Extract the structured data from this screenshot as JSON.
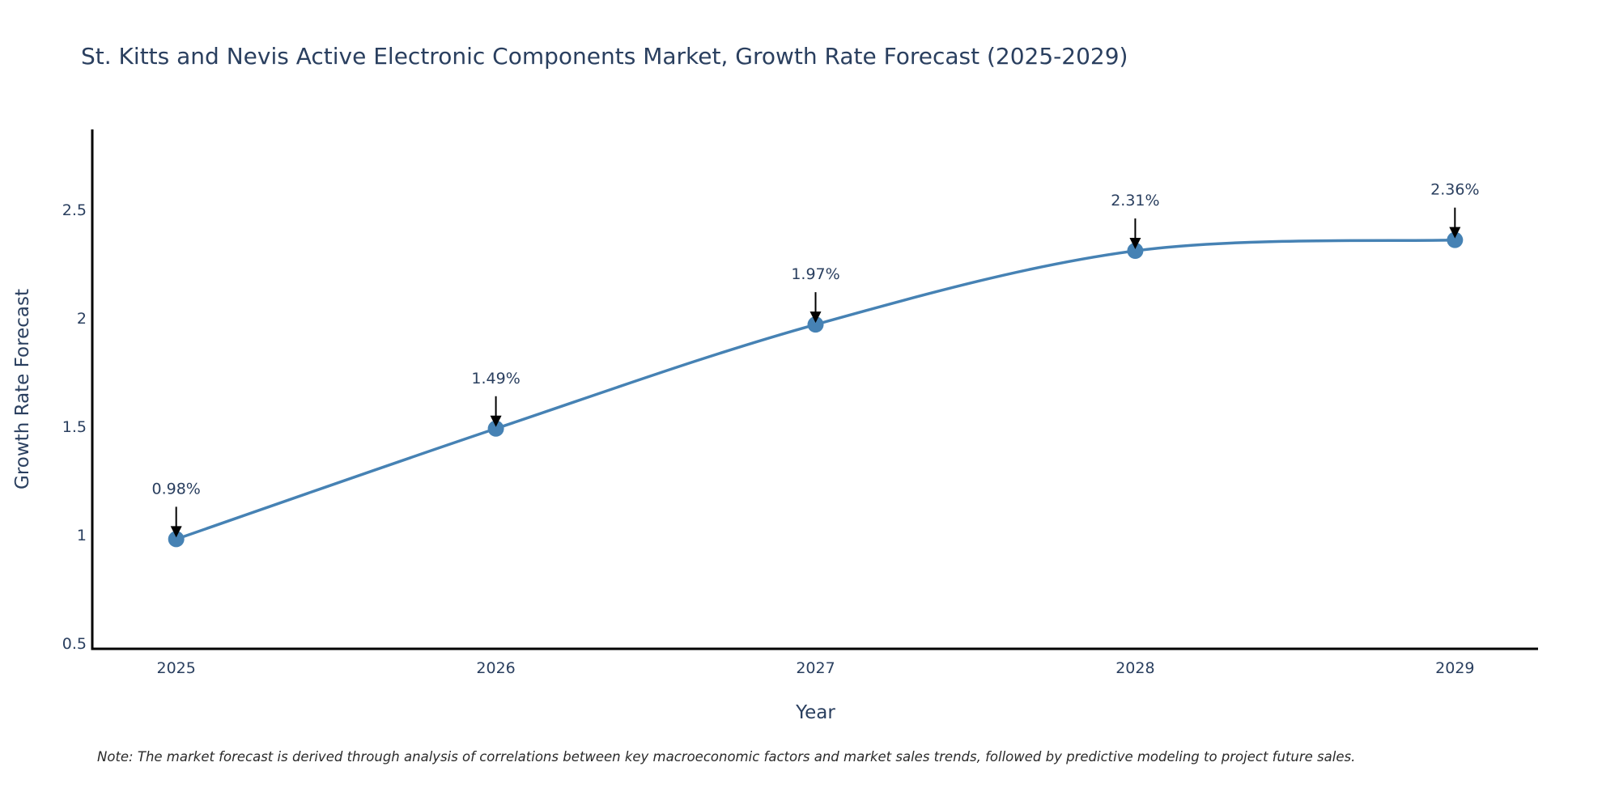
{
  "chart_data": {
    "type": "line",
    "title": "St. Kitts and Nevis Active Electronic Components Market, Growth Rate Forecast (2025-2029)",
    "xlabel": "Year",
    "ylabel": "Growth Rate Forecast",
    "x": [
      2025,
      2026,
      2027,
      2028,
      2029
    ],
    "x_tick_labels": [
      "2025",
      "2026",
      "2027",
      "2028",
      "2029"
    ],
    "series": [
      {
        "name": "Growth Rate Forecast",
        "values": [
          0.98,
          1.49,
          1.97,
          2.31,
          2.36
        ],
        "color": "#4682B4",
        "line_shape": "spline",
        "markers": true
      }
    ],
    "annotations": [
      "0.98%",
      "1.49%",
      "1.97%",
      "2.31%",
      "2.36%"
    ],
    "y_ticks": [
      0.5,
      1,
      1.5,
      2,
      2.5
    ],
    "y_tick_labels": [
      "0.5",
      "1",
      "1.5",
      "2",
      "2.5"
    ],
    "xlim": [
      2024.74,
      2029.26
    ],
    "ylim": [
      0.474,
      2.87
    ],
    "grid": false,
    "legend": "none",
    "note": "Note: The market forecast is derived through analysis of correlations between key macroeconomic factors and market sales trends, followed by predictive modeling to project future sales."
  }
}
